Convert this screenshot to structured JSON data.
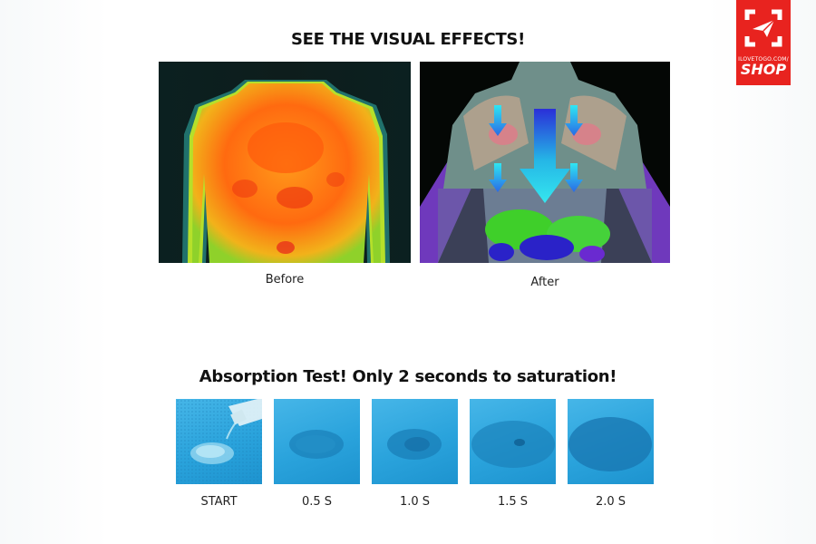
{
  "logo": {
    "small_text": "ILOVETOGO.COM/",
    "big_text": "SHOP"
  },
  "visual_effects": {
    "title": "SEE THE VISUAL EFFECTS!",
    "before_label": "Before",
    "after_label": "After"
  },
  "absorption": {
    "title": "Absorption Test! Only 2 seconds to saturation!",
    "steps": [
      {
        "label": "START"
      },
      {
        "label": "0.5 S"
      },
      {
        "label": "1.0 S"
      },
      {
        "label": "1.5 S"
      },
      {
        "label": "2.0 S"
      }
    ]
  },
  "colors": {
    "brand_red": "#e8231f",
    "fabric_blue": "#2aa3dc"
  }
}
